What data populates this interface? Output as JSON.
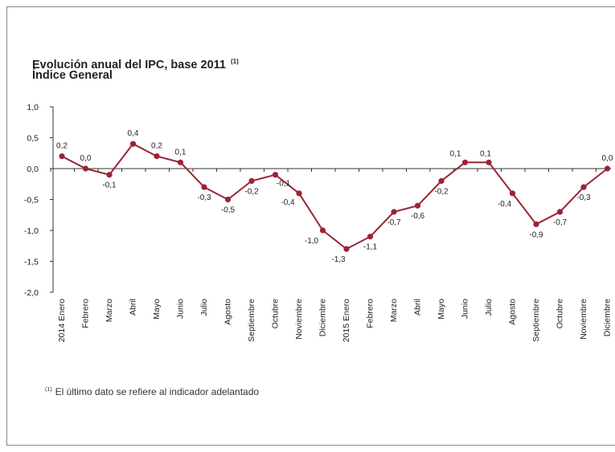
{
  "chart_data": {
    "type": "line",
    "title": "Evolución anual del IPC, base 2011",
    "title_note": "(1)",
    "subtitle": "Índice General",
    "ylim": [
      -2.0,
      1.0
    ],
    "yticks": [
      "1,0",
      "0,5",
      "0,0",
      "-0,5",
      "-1,0",
      "-1,5",
      "-2,0"
    ],
    "ytick_values": [
      1.0,
      0.5,
      0.0,
      -0.5,
      -1.0,
      -1.5,
      -2.0
    ],
    "categories": [
      "2014 Enero",
      "Febrero",
      "Marzo",
      "Abril",
      "Mayo",
      "Junio",
      "Julio",
      "Agosto",
      "Septiembre",
      "Octubre",
      "Noviembre",
      "Diciembre",
      "2015 Enero",
      "Febrero",
      "Marzo",
      "Abril",
      "Mayo",
      "Junio",
      "Julio",
      "Agosto",
      "Septiembre",
      "Octubre",
      "Noviembre",
      "Diciembre"
    ],
    "values": [
      0.2,
      0.0,
      -0.1,
      0.4,
      0.2,
      0.1,
      -0.3,
      -0.5,
      -0.2,
      -0.1,
      -0.4,
      -1.0,
      -1.3,
      -1.1,
      -0.7,
      -0.6,
      -0.2,
      0.1,
      0.1,
      -0.4,
      -0.9,
      -0.7,
      -0.3,
      0.0
    ],
    "labels": [
      "0,2",
      "0,0",
      "-0,1",
      "0,4",
      "0,2",
      "0,1",
      "-0,3",
      "-0,5",
      "-0,2",
      "-0,1",
      "-0,4",
      "-1,0",
      "-1,3",
      "-1,1",
      "-0,7",
      "-0,6",
      "-0,2",
      "0,1",
      "0,1",
      "-0,4",
      "-0,9",
      "-0,7",
      "-0,3",
      "0,0"
    ],
    "colors": {
      "line": "#9b2335",
      "axis": "#333333"
    },
    "grid": false,
    "legend": "none"
  },
  "footnote": {
    "mark": "(1)",
    "text": "El último dato se refiere al indicador adelantado"
  }
}
